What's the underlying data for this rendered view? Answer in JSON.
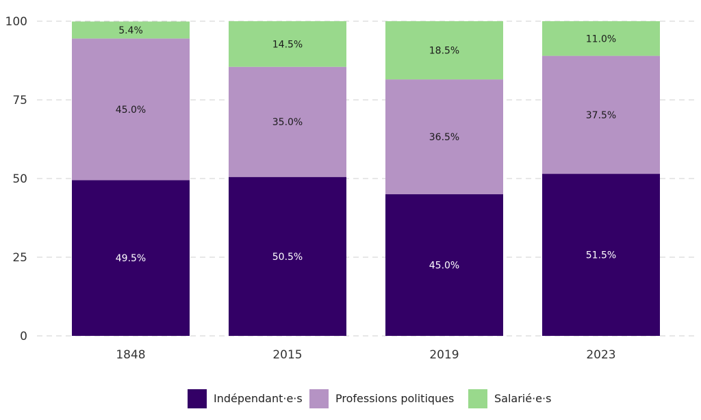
{
  "chart_data": {
    "type": "bar",
    "stacked": true,
    "categories": [
      "1848",
      "2015",
      "2019",
      "2023"
    ],
    "series": [
      {
        "name": "Indépendant·e·s",
        "color": "#330066",
        "values": [
          49.5,
          50.5,
          45.0,
          51.5
        ],
        "labels": [
          "49.5%",
          "50.5%",
          "45.0%",
          "51.5%"
        ],
        "label_color": "#ffffff"
      },
      {
        "name": "Professions politiques",
        "color": "#b593c4",
        "values": [
          45.0,
          35.0,
          36.5,
          37.5
        ],
        "labels": [
          "45.0%",
          "35.0%",
          "36.5%",
          "37.5%"
        ],
        "label_color": "#1a1a1a"
      },
      {
        "name": "Salarié·e·s",
        "color": "#99d98c",
        "values": [
          5.4,
          14.5,
          18.5,
          11.0
        ],
        "labels": [
          "5.4%",
          "14.5%",
          "18.5%",
          "11.0%"
        ],
        "label_color": "#1a1a1a"
      }
    ],
    "ylim": [
      0,
      100
    ],
    "yticks": [
      "0",
      "25",
      "50",
      "75",
      "100"
    ],
    "grid": "horizontal-dashed",
    "legend_position": "bottom",
    "title": "",
    "xlabel": "",
    "ylabel": ""
  }
}
